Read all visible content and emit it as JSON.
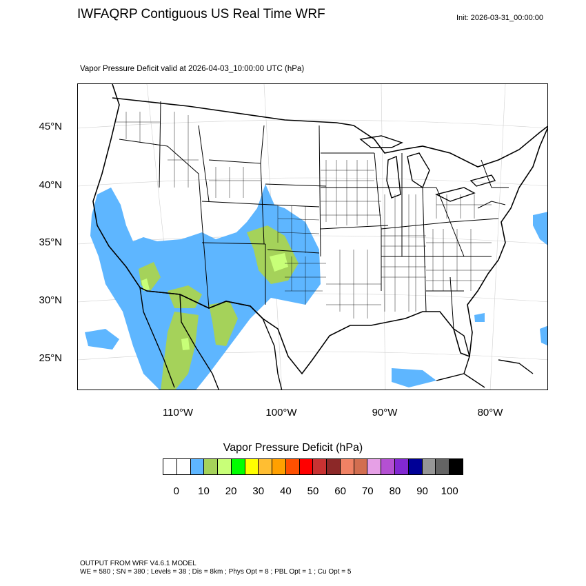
{
  "header": {
    "title": "IWFAQRP Contiguous US Real Time WRF",
    "init": "Init: 2026-03-31_00:00:00",
    "subtitle": "Vapor Pressure Deficit valid at 2026-04-03_10:00:00 UTC   (hPa)"
  },
  "map": {
    "projection": "lambert-conformal",
    "lat_labels": [
      "45°N",
      "40°N",
      "35°N",
      "30°N",
      "25°N"
    ],
    "lon_labels": [
      "110°W",
      "100°W",
      "90°W",
      "80°W"
    ],
    "colors": {
      "land": "#ffffff",
      "borders": "#000000",
      "fill_blue": "#5eb6ff",
      "fill_olive": "#a5d25a",
      "fill_lightgreen": "#c8ff78"
    }
  },
  "colorbar": {
    "title": "Vapor Pressure Deficit  (hPa)",
    "colors": [
      "#ffffff",
      "#ffffff",
      "#5eb6ff",
      "#a5d25a",
      "#c8ff78",
      "#00ff00",
      "#ffff00",
      "#ffbe32",
      "#ffa000",
      "#ff5000",
      "#ff0000",
      "#c83232",
      "#8c2828",
      "#f08264",
      "#d26e50",
      "#e6a0e6",
      "#b450d2",
      "#8228d2",
      "#000096",
      "#969696",
      "#646464",
      "#000000"
    ],
    "ticks": [
      "0",
      "10",
      "20",
      "30",
      "40",
      "50",
      "60",
      "70",
      "80",
      "90",
      "100"
    ]
  },
  "footer": {
    "line1": "OUTPUT FROM WRF V4.6.1 MODEL",
    "line2": "WE = 580 ; SN = 380 ; Levels = 38 ; Dis = 8km ; Phys Opt = 8 ; PBL Opt = 1 ; Cu Opt = 5"
  }
}
